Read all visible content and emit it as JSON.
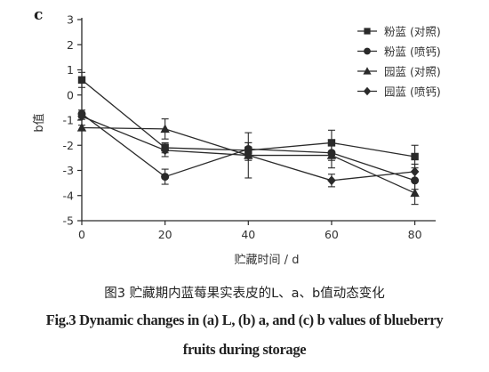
{
  "panel_label": "c",
  "chart_data": {
    "type": "line",
    "xlabel": "贮藏时间 / d",
    "ylabel": "b值",
    "x": [
      0,
      20,
      40,
      60,
      80
    ],
    "xlim": [
      0,
      85
    ],
    "ylim": [
      -5,
      3
    ],
    "xticks": [
      0,
      20,
      40,
      60,
      80
    ],
    "yticks": [
      -5,
      -4,
      -3,
      -2,
      -1,
      0,
      1,
      2,
      3
    ],
    "grid": false,
    "legend_position": "top-right",
    "series": [
      {
        "name": "粉蓝 (对照)",
        "marker": "square",
        "values": [
          0.6,
          -2.1,
          -2.2,
          -1.9,
          -2.45
        ],
        "errors": [
          0.3,
          0.2,
          0.3,
          0.5,
          0.45
        ]
      },
      {
        "name": "粉蓝 (喷钙)",
        "marker": "circle",
        "values": [
          -0.75,
          -3.25,
          -2.15,
          -2.3,
          -3.4
        ],
        "errors": [
          0.15,
          0.3,
          0.25,
          0.3,
          0.35
        ]
      },
      {
        "name": "园蓝 (对照)",
        "marker": "triangle",
        "values": [
          -1.3,
          -1.35,
          -2.4,
          -2.4,
          -3.9
        ],
        "errors": [
          0.1,
          0.4,
          0.9,
          0.5,
          0.45
        ]
      },
      {
        "name": "园蓝 (喷钙)",
        "marker": "diamond",
        "values": [
          -0.85,
          -2.2,
          -2.4,
          -3.4,
          -3.05
        ],
        "errors": [
          0.12,
          0.25,
          0.2,
          0.25,
          0.3
        ]
      }
    ]
  },
  "caption": {
    "zh": "图3 贮藏期内蓝莓果实表皮的L、a、b值动态变化",
    "en_line1": "Fig.3 Dynamic changes in (a) L, (b) a, and (c) b values of blueberry",
    "en_line2": "fruits during storage"
  }
}
